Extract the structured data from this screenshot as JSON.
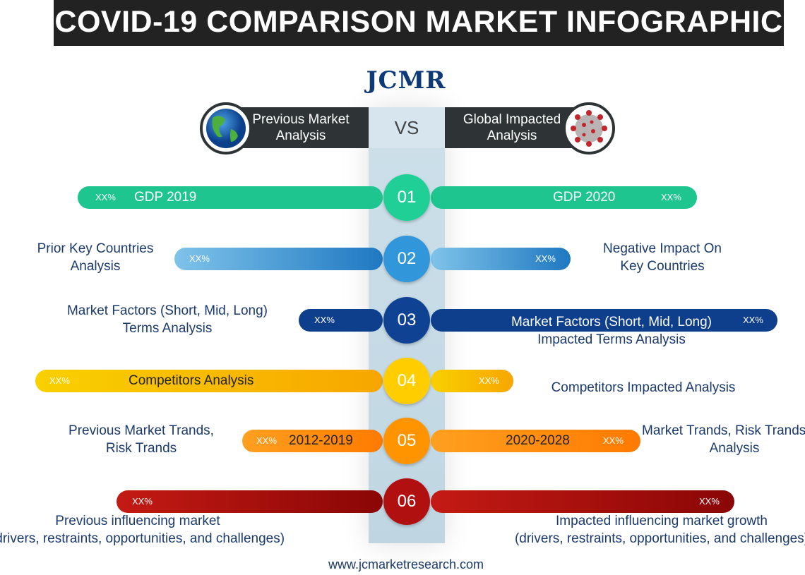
{
  "title": "COVID-19 COMPARISON MARKET INFOGRAPHIC",
  "logo": "JCMR",
  "header": {
    "left_label": [
      "Previous Market",
      "Analysis"
    ],
    "vs": "VS",
    "right_label": [
      "Global Impacted",
      "Analysis"
    ],
    "left_icon": "globe-icon",
    "right_icon": "virus-icon"
  },
  "rows": [
    {
      "number": "01",
      "color": "#1ec58f",
      "left_pct": "XX%",
      "left_bar_label": "GDP 2019",
      "right_bar_label": "GDP 2020",
      "right_pct": "XX%",
      "left_desc": [],
      "right_desc": []
    },
    {
      "number": "02",
      "color": "#2f8fd0",
      "left_pct": "XX%",
      "right_pct": "XX%",
      "left_desc": [
        "Prior Key Countries",
        "Analysis"
      ],
      "right_desc": [
        "Negative Impact On",
        "Key Countries"
      ]
    },
    {
      "number": "03",
      "color": "#0e3f8c",
      "left_pct": "XX%",
      "right_pct": "XX%",
      "left_desc": [
        "Market Factors (Short, Mid, Long)",
        "Terms Analysis"
      ],
      "right_desc": [
        "Market Factors (Short, Mid, Long)",
        "Impacted Terms Analysis"
      ]
    },
    {
      "number": "04",
      "color": "#f7c300",
      "left_pct": "XX%",
      "left_bar_label": "Competitors Analysis",
      "right_pct": "XX%",
      "left_desc": [],
      "right_desc": [
        "Competitors Impacted Analysis"
      ]
    },
    {
      "number": "05",
      "color": "#ff8c00",
      "left_pct": "XX%",
      "left_bar_label": "2012-2019",
      "right_bar_label": "2020-2028",
      "right_pct": "XX%",
      "left_desc": [
        "Previous  Market Trands,",
        "Risk Trands"
      ],
      "right_desc": [
        "Market Trands, Risk Trands",
        "Analysis"
      ]
    },
    {
      "number": "06",
      "color": "#a80f0f",
      "left_pct": "XX%",
      "right_pct": "XX%",
      "left_desc": [
        "Previous influencing market",
        "(drivers, restraints, opportunities, and challenges)"
      ],
      "right_desc": [
        "Impacted influencing market growth",
        "(drivers, restraints, opportunities, and challenges)"
      ]
    }
  ],
  "footer": "www.jcmarketresearch.com"
}
